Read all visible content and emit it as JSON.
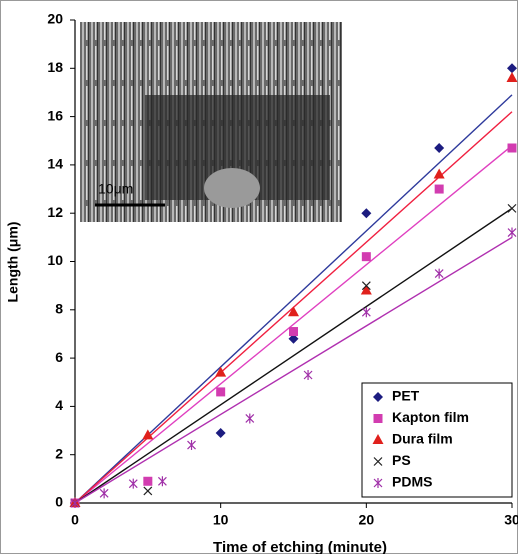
{
  "chart_data": {
    "type": "scatter",
    "x_label": "Time of etching (minute)",
    "y_label": "Length (μm)",
    "inset_scale_label": "10μm",
    "xlim": [
      0,
      30
    ],
    "xticks": [
      0,
      10,
      20,
      30
    ],
    "ylim": [
      0,
      20
    ],
    "yticks": [
      0,
      2,
      4,
      6,
      8,
      10,
      12,
      14,
      16,
      18,
      20
    ],
    "legend": "lower right",
    "series": [
      {
        "name": "PET",
        "color": "#1c1c80",
        "marker": "diamond",
        "x": [
          0,
          10,
          15,
          20,
          25,
          30
        ],
        "values": [
          0,
          2.9,
          6.8,
          12.0,
          14.7,
          18.0
        ],
        "trend_x": [
          0,
          30
        ],
        "trend_values": [
          0,
          16.9
        ],
        "trend_color": "#2e3a9c"
      },
      {
        "name": "Kapton film",
        "color": "#d23cb0",
        "marker": "square",
        "x": [
          0,
          5,
          10,
          15,
          20,
          25,
          30
        ],
        "values": [
          0,
          0.9,
          4.6,
          7.1,
          10.2,
          13.0,
          14.7
        ],
        "trend_x": [
          0,
          30
        ],
        "trend_values": [
          0,
          14.8
        ],
        "trend_color": "#e040c0"
      },
      {
        "name": "Dura film",
        "color": "#e0201c",
        "marker": "triangle",
        "x": [
          0,
          5,
          10,
          15,
          20,
          25,
          30
        ],
        "values": [
          0,
          2.8,
          5.4,
          7.9,
          8.8,
          13.6,
          17.6
        ],
        "trend_x": [
          0,
          30
        ],
        "trend_values": [
          0,
          16.2
        ],
        "trend_color": "#f02040"
      },
      {
        "name": "PS",
        "color": "#222222",
        "marker": "cross",
        "x": [
          0,
          5,
          20,
          30
        ],
        "values": [
          0,
          0.5,
          9.0,
          12.2
        ],
        "trend_x": [
          0,
          30
        ],
        "trend_values": [
          0,
          12.2
        ],
        "trend_color": "#111111"
      },
      {
        "name": "PDMS",
        "color": "#a030a8",
        "marker": "star",
        "x": [
          0,
          2,
          4,
          6,
          8,
          12,
          16,
          20,
          25,
          30
        ],
        "values": [
          0,
          0.4,
          0.8,
          0.9,
          2.4,
          3.5,
          5.3,
          7.9,
          9.5,
          11.2
        ],
        "trend_x": [
          0,
          30
        ],
        "trend_values": [
          0,
          11.0
        ],
        "trend_color": "#b030b0"
      }
    ]
  }
}
